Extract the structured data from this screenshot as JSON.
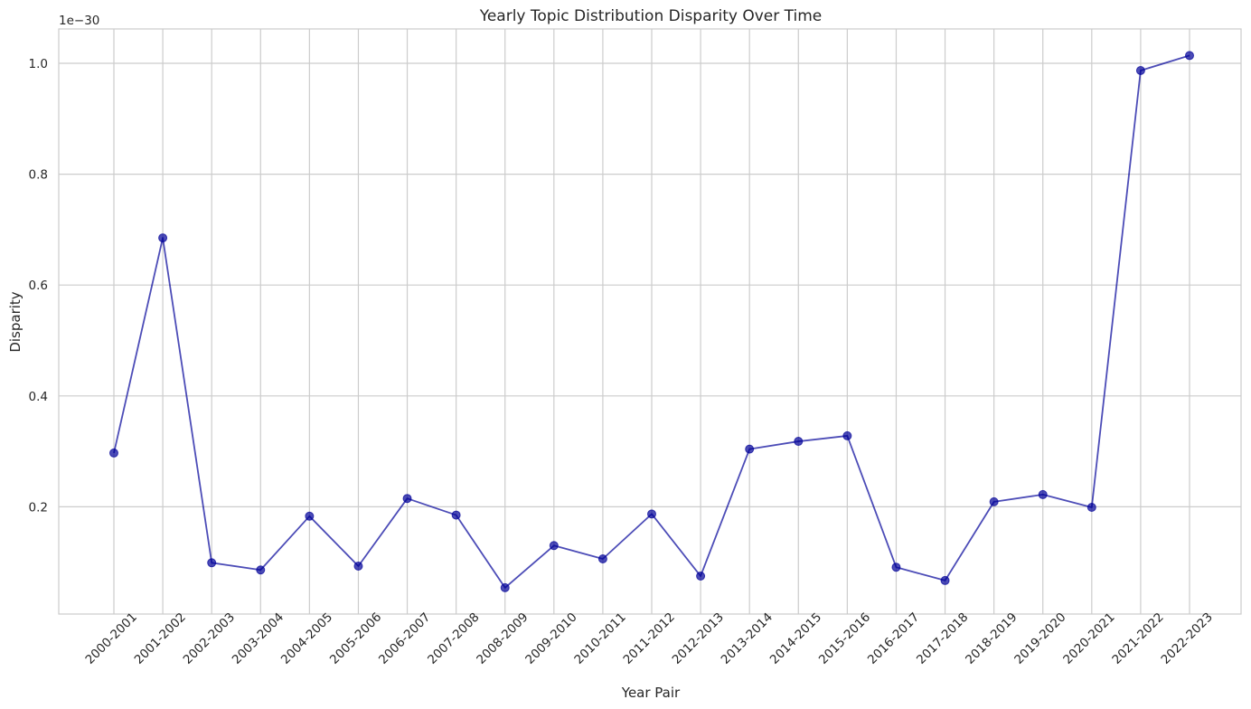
{
  "chart_data": {
    "type": "line",
    "title": "Yearly Topic Distribution Disparity Over Time",
    "xlabel": "Year Pair",
    "ylabel": "Disparity",
    "y_offset_label": "1e−30",
    "y_scale_exponent": -30,
    "categories": [
      "2000-2001",
      "2001-2002",
      "2002-2003",
      "2003-2004",
      "2004-2005",
      "2005-2006",
      "2006-2007",
      "2007-2008",
      "2008-2009",
      "2009-2010",
      "2010-2011",
      "2011-2012",
      "2012-2013",
      "2013-2014",
      "2014-2015",
      "2015-2016",
      "2016-2017",
      "2017-2018",
      "2018-2019",
      "2019-2020",
      "2020-2021",
      "2021-2022",
      "2022-2023"
    ],
    "series": [
      {
        "color": "#000099",
        "marker": "circle",
        "values": [
          0.297,
          0.685,
          0.099,
          0.086,
          0.183,
          0.093,
          0.215,
          0.185,
          0.054,
          0.13,
          0.106,
          0.187,
          0.075,
          0.304,
          0.318,
          0.328,
          0.091,
          0.067,
          0.209,
          0.222,
          0.199,
          0.987,
          1.014
        ]
      }
    ],
    "yticks": [
      "0.2",
      "0.4",
      "0.6",
      "0.8",
      "1.0"
    ],
    "ylim": [
      0.0065,
      1.062
    ],
    "grid": true
  }
}
